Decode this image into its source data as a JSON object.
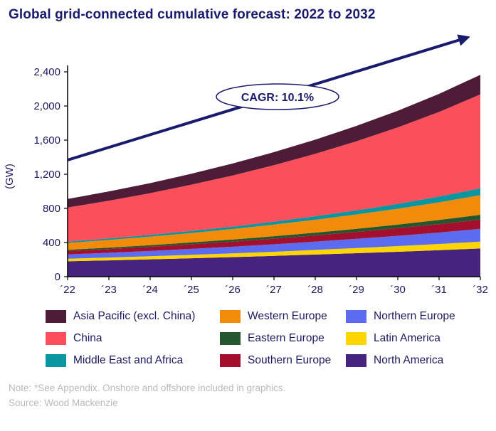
{
  "title": "Global grid-connected cumulative forecast: 2022 to 2032",
  "ylabel": "(GW)",
  "cagr_label": "CAGR: 10.1%",
  "notes": {
    "note": "Note: *See Appendix. Onshore and offshore included in graphics.",
    "source": "Source: Wood Mackenzie"
  },
  "legend": [
    "Asia Pacific (excl. China)",
    "Western Europe",
    "Northern Europe",
    "China",
    "Eastern Europe",
    "Latin America",
    "Middle East and Africa",
    "Southern Europe",
    "North America"
  ],
  "chart_data": {
    "type": "area",
    "stacked": true,
    "title": "Global grid-connected cumulative forecast: 2022 to 2032",
    "xlabel": "",
    "ylabel": "(GW)",
    "annotation": "CAGR: 10.1%",
    "grid": false,
    "legend_position": "bottom",
    "years": [
      2022,
      2023,
      2024,
      2025,
      2026,
      2027,
      2028,
      2029,
      2030,
      2031,
      2032
    ],
    "x_labels": [
      "´22",
      "´23",
      "´24",
      "´25",
      "´26",
      "´27",
      "´28",
      "´29",
      "´30",
      "´31",
      "´32"
    ],
    "y_ticks": [
      0,
      400,
      800,
      1200,
      1600,
      2000,
      2400
    ],
    "y_tick_labels": [
      "0",
      "400",
      "800",
      "1,200",
      "1,600",
      "2,000",
      "2,400"
    ],
    "ylim": [
      0,
      2450
    ],
    "series_order": "bottom_to_top",
    "series": [
      {
        "name": "North America",
        "color": "#46237e",
        "values": [
          180,
          191,
          203,
          216,
          229,
          243,
          259,
          275,
          292,
          310,
          330
        ]
      },
      {
        "name": "Latin America",
        "color": "#ffd500",
        "values": [
          30,
          33,
          36,
          40,
          44,
          49,
          54,
          60,
          66,
          73,
          80
        ]
      },
      {
        "name": "Northern Europe",
        "color": "#5c6cf0",
        "values": [
          50,
          56,
          62,
          70,
          78,
          87,
          97,
          108,
          120,
          134,
          150
        ]
      },
      {
        "name": "Southern Europe",
        "color": "#a50f2e",
        "values": [
          40,
          44,
          49,
          54,
          60,
          66,
          73,
          81,
          90,
          99,
          110
        ]
      },
      {
        "name": "Eastern Europe",
        "color": "#23582f",
        "values": [
          15,
          17,
          19,
          22,
          25,
          29,
          33,
          37,
          42,
          48,
          55
        ]
      },
      {
        "name": "Western Europe",
        "color": "#f28a0a",
        "values": [
          80,
          89,
          99,
          110,
          122,
          136,
          151,
          168,
          186,
          207,
          230
        ]
      },
      {
        "name": "Middle East and Africa",
        "color": "#0a96a0",
        "values": [
          15,
          18,
          21,
          25,
          29,
          35,
          41,
          48,
          57,
          68,
          80
        ]
      },
      {
        "name": "China",
        "color": "#fb4f5c",
        "values": [
          400,
          442,
          489,
          541,
          599,
          662,
          732,
          810,
          896,
          991,
          1100
        ]
      },
      {
        "name": "Asia Pacific (excl. China)",
        "color": "#4e1c37",
        "values": [
          100,
          109,
          118,
          128,
          140,
          152,
          165,
          180,
          195,
          212,
          230
        ]
      }
    ]
  }
}
